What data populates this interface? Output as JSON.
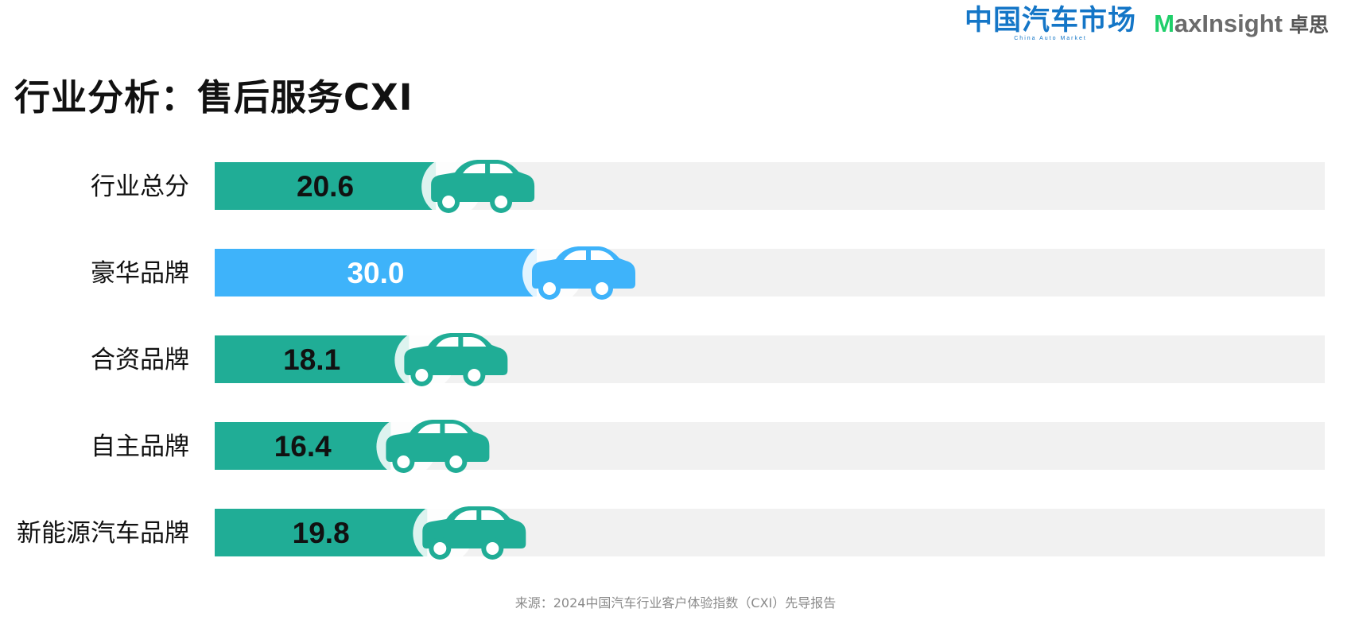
{
  "brand": {
    "cam_logo_cn": "中国汽车市场",
    "cam_logo_en": "China Auto Market",
    "mi_logo_m": "M",
    "mi_logo_rest": "axInsight",
    "mi_logo_cn": "卓思"
  },
  "title": "行业分析：售后服务CXI",
  "footer": {
    "source": "来源：2024中国汽车行业客户体验指数（CXI）先导报告"
  },
  "colors": {
    "teal": "#20ad96",
    "blue": "#3eb3fa",
    "track": "#f1f1f1",
    "label_dark": "#111111",
    "label_light": "#ffffff"
  },
  "chart_data": {
    "type": "bar",
    "orientation": "horizontal",
    "title": "",
    "xlabel": "",
    "ylabel": "",
    "xlim": [
      0,
      100
    ],
    "grid": false,
    "legend": "none",
    "categories": [
      "行业总分",
      "豪华品牌",
      "合资品牌",
      "自主品牌",
      "新能源汽车品牌"
    ],
    "values": [
      20.6,
      30.0,
      18.1,
      16.4,
      19.8
    ],
    "data_labels": [
      "20.6",
      "30.0",
      "18.1",
      "16.4",
      "19.8"
    ],
    "bar_colors": [
      "#20ad96",
      "#3eb3fa",
      "#20ad96",
      "#20ad96",
      "#20ad96"
    ],
    "label_colors": [
      "#111111",
      "#ffffff",
      "#111111",
      "#111111",
      "#111111"
    ],
    "marker_icon": "car-icon"
  }
}
